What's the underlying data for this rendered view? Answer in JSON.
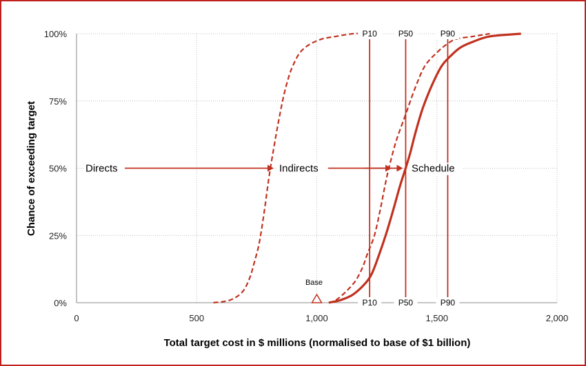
{
  "chart_data": {
    "type": "line",
    "title": "",
    "xlabel": "Total target cost in $ millions (normalised to base of $1 billion)",
    "ylabel": "Chance of exceeding target",
    "xlim": [
      0,
      2000
    ],
    "ylim": [
      0,
      100
    ],
    "x_ticks": [
      0,
      500,
      1000,
      1500,
      2000
    ],
    "x_tick_labels": [
      "0",
      "500",
      "1,000",
      "1,500",
      "2,000"
    ],
    "y_ticks": [
      0,
      25,
      50,
      75,
      100
    ],
    "y_tick_labels": [
      "0%",
      "25%",
      "50%",
      "75%",
      "100%"
    ],
    "grid": true,
    "colors": {
      "series": "#c0311f",
      "frame": "#c0201b"
    },
    "series": [
      {
        "name": "",
        "style": "dashed",
        "points": [
          [
            570,
            0
          ],
          [
            640,
            1
          ],
          [
            690,
            4
          ],
          [
            720,
            9
          ],
          [
            740,
            15
          ],
          [
            760,
            22
          ],
          [
            780,
            33
          ],
          [
            800,
            46
          ],
          [
            820,
            57
          ],
          [
            840,
            67
          ],
          [
            860,
            76
          ],
          [
            880,
            83
          ],
          [
            900,
            88
          ],
          [
            930,
            93
          ],
          [
            970,
            96
          ],
          [
            1020,
            98
          ],
          [
            1080,
            99
          ],
          [
            1150,
            100
          ],
          [
            1200,
            100
          ]
        ]
      },
      {
        "name": "",
        "style": "dashed",
        "points": [
          [
            1050,
            0
          ],
          [
            1080,
            1
          ],
          [
            1120,
            4
          ],
          [
            1160,
            8
          ],
          [
            1190,
            13
          ],
          [
            1210,
            18
          ],
          [
            1240,
            25
          ],
          [
            1265,
            35
          ],
          [
            1285,
            44
          ],
          [
            1300,
            50
          ],
          [
            1330,
            60
          ],
          [
            1370,
            70
          ],
          [
            1410,
            80
          ],
          [
            1450,
            88
          ],
          [
            1500,
            93
          ],
          [
            1540,
            96
          ],
          [
            1580,
            98
          ],
          [
            1650,
            99
          ],
          [
            1720,
            100
          ]
        ]
      },
      {
        "name": "",
        "style": "solid",
        "points": [
          [
            1050,
            0
          ],
          [
            1100,
            1
          ],
          [
            1150,
            3
          ],
          [
            1200,
            7
          ],
          [
            1230,
            11
          ],
          [
            1260,
            18
          ],
          [
            1290,
            26
          ],
          [
            1320,
            35
          ],
          [
            1345,
            43
          ],
          [
            1370,
            50
          ],
          [
            1390,
            56
          ],
          [
            1410,
            63
          ],
          [
            1440,
            72
          ],
          [
            1480,
            81
          ],
          [
            1520,
            88
          ],
          [
            1560,
            92
          ],
          [
            1600,
            95
          ],
          [
            1650,
            97
          ],
          [
            1720,
            99
          ],
          [
            1850,
            100
          ]
        ]
      }
    ],
    "percentile_lines": [
      {
        "label": "P10",
        "x": 1220
      },
      {
        "label": "P50",
        "x": 1370
      },
      {
        "label": "P90",
        "x": 1545
      }
    ],
    "annotations": {
      "directs": "Directs",
      "indirects": "Indirects",
      "schedule": "Schedule",
      "base": "Base",
      "base_x": 1000,
      "arrow_level": 50
    }
  }
}
